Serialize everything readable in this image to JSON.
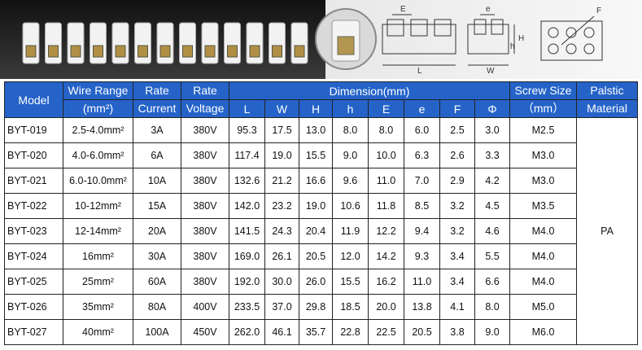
{
  "banner": {
    "diagram_labels": [
      "E",
      "L",
      "e",
      "W",
      "H",
      "h",
      "F"
    ]
  },
  "table": {
    "header": {
      "model": "Model",
      "wire_range": [
        "Wire Range",
        "(mm²)"
      ],
      "rate_current": [
        "Rate",
        "Current"
      ],
      "rate_voltage": [
        "Rate",
        "Voltage"
      ],
      "dimension": "Dimension(mm)",
      "dimension_cols": [
        "L",
        "W",
        "H",
        "h",
        "E",
        "e",
        "F",
        "Φ"
      ],
      "screw_size": [
        "Screw Size",
        "（mm）"
      ],
      "material": [
        "Palstic",
        "Material"
      ]
    },
    "rows": [
      [
        "BYT-019",
        "2.5-4.0mm²",
        "3A",
        "380V",
        "95.3",
        "17.5",
        "13.0",
        "8.0",
        "8.0",
        "6.0",
        "2.5",
        "3.0",
        "M2.5"
      ],
      [
        "BYT-020",
        "4.0-6.0mm²",
        "6A",
        "380V",
        "117.4",
        "19.0",
        "15.5",
        "9.0",
        "10.0",
        "6.3",
        "2.6",
        "3.3",
        "M3.0"
      ],
      [
        "BYT-021",
        "6.0-10.0mm²",
        "10A",
        "380V",
        "132.6",
        "21.2",
        "16.6",
        "9.6",
        "11.0",
        "7.0",
        "2.9",
        "4.2",
        "M3.0"
      ],
      [
        "BYT-022",
        "10-12mm²",
        "15A",
        "380V",
        "142.0",
        "23.2",
        "19.0",
        "10.6",
        "11.8",
        "8.5",
        "3.2",
        "4.5",
        "M3.5"
      ],
      [
        "BYT-023",
        "12-14mm²",
        "20A",
        "380V",
        "141.5",
        "24.3",
        "20.4",
        "11.9",
        "12.2",
        "9.4",
        "3.2",
        "4.6",
        "M4.0"
      ],
      [
        "BYT-024",
        "16mm²",
        "30A",
        "380V",
        "169.0",
        "26.1",
        "20.5",
        "12.0",
        "14.2",
        "9.3",
        "3.4",
        "5.5",
        "M4.0"
      ],
      [
        "BYT-025",
        "25mm²",
        "60A",
        "380V",
        "192.0",
        "30.0",
        "26.0",
        "15.5",
        "16.2",
        "11.0",
        "3.4",
        "6.6",
        "M4.0"
      ],
      [
        "BYT-026",
        "35mm²",
        "80A",
        "400V",
        "233.5",
        "37.0",
        "29.8",
        "18.5",
        "20.0",
        "13.8",
        "4.1",
        "8.0",
        "M5.0"
      ],
      [
        "BYT-027",
        "40mm²",
        "100A",
        "450V",
        "262.0",
        "46.1",
        "35.7",
        "22.8",
        "22.5",
        "20.5",
        "3.8",
        "9.0",
        "M6.0"
      ]
    ],
    "material": "PA"
  }
}
